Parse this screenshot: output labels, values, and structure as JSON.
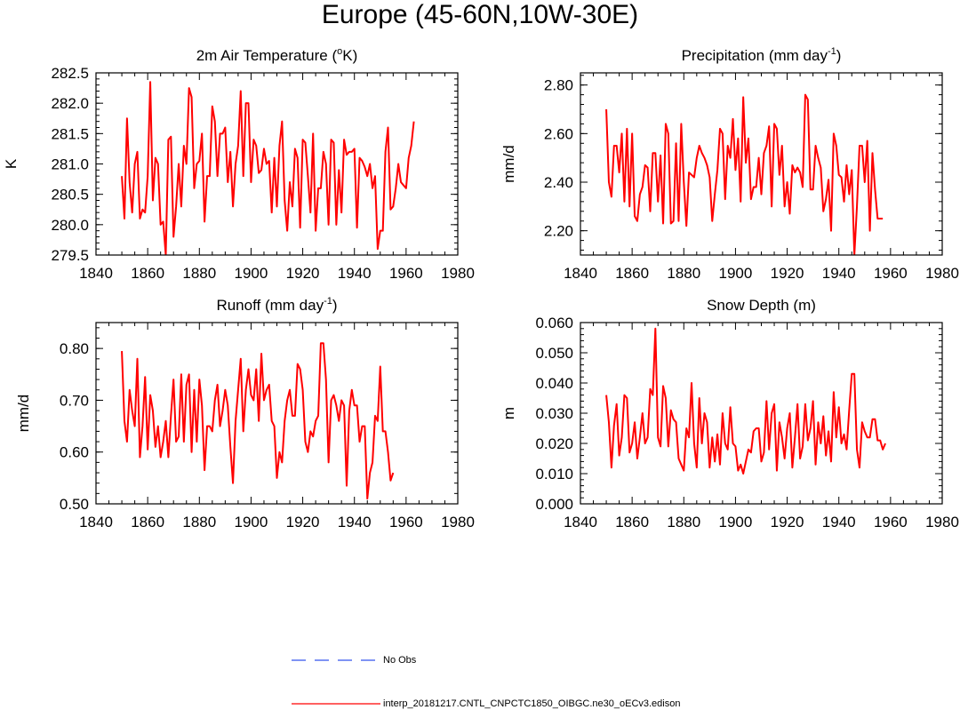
{
  "figure": {
    "title": "Europe (45-60N,10W-30E)",
    "line_color": "#ff0000",
    "obs_color": "#3355ee"
  },
  "legend": {
    "obs_label": "No Obs",
    "model_label": "interp_20181217.CNTL_CNPCTC1850_OIBGC.ne30_oECv3.edison"
  },
  "chart_data": [
    {
      "type": "line",
      "title_main": "2m Air Temperature (",
      "title_sup": "o",
      "title_end": "K)",
      "ylabel": "K",
      "xlim": [
        1840,
        1980
      ],
      "xticks": [
        1840,
        1860,
        1880,
        1900,
        1920,
        1940,
        1960,
        1980
      ],
      "ylim": [
        279.5,
        282.5
      ],
      "yticks": [
        "279.5",
        "280.0",
        "280.5",
        "281.0",
        "281.5",
        "282.0",
        "282.5"
      ],
      "x_start": 1850,
      "values": [
        280.8,
        280.1,
        281.75,
        280.7,
        280.2,
        281.0,
        281.2,
        280.1,
        280.25,
        280.2,
        280.8,
        282.35,
        280.4,
        281.1,
        281.0,
        280.0,
        280.05,
        279.5,
        281.4,
        281.45,
        279.8,
        280.3,
        281.0,
        280.3,
        281.3,
        281.0,
        282.25,
        282.1,
        280.6,
        281.0,
        281.05,
        281.5,
        280.05,
        280.8,
        280.8,
        281.95,
        281.7,
        280.8,
        281.5,
        281.5,
        281.6,
        280.7,
        281.2,
        280.3,
        281.0,
        281.3,
        282.2,
        280.8,
        282.0,
        282.0,
        280.7,
        281.4,
        281.3,
        280.85,
        280.9,
        281.25,
        281.0,
        281.05,
        280.2,
        281.1,
        280.3,
        281.3,
        281.7,
        280.4,
        279.9,
        280.7,
        280.3,
        281.25,
        281.1,
        279.95,
        281.4,
        281.35,
        280.8,
        280.2,
        281.5,
        279.9,
        280.6,
        280.6,
        281.2,
        281.0,
        280.0,
        281.4,
        281.35,
        280.0,
        280.9,
        280.2,
        281.4,
        281.15,
        281.2,
        281.2,
        281.25,
        279.95,
        281.1,
        281.05,
        280.95,
        280.8,
        281.0,
        280.6,
        280.8,
        279.6,
        279.9,
        279.9,
        281.2,
        281.6,
        280.25,
        280.3,
        280.6,
        281.0,
        280.7,
        280.65,
        280.6,
        281.1,
        281.3,
        281.7
      ]
    },
    {
      "type": "line",
      "title_main": "Precipitation (mm day",
      "title_sup": "-1",
      "title_end": ")",
      "ylabel": "mm/d",
      "xlim": [
        1840,
        1980
      ],
      "xticks": [
        1840,
        1860,
        1880,
        1900,
        1920,
        1940,
        1960,
        1980
      ],
      "ylim": [
        2.1,
        2.85
      ],
      "yticks": [
        "2.20",
        "2.40",
        "2.60",
        "2.80"
      ],
      "x_start": 1850,
      "values": [
        2.7,
        2.4,
        2.34,
        2.55,
        2.55,
        2.44,
        2.6,
        2.32,
        2.62,
        2.3,
        2.6,
        2.26,
        2.24,
        2.35,
        2.38,
        2.47,
        2.46,
        2.28,
        2.52,
        2.52,
        2.32,
        2.51,
        2.23,
        2.64,
        2.6,
        2.23,
        2.24,
        2.56,
        2.24,
        2.64,
        2.4,
        2.22,
        2.44,
        2.43,
        2.42,
        2.5,
        2.55,
        2.52,
        2.5,
        2.47,
        2.42,
        2.24,
        2.35,
        2.45,
        2.62,
        2.6,
        2.33,
        2.55,
        2.5,
        2.66,
        2.45,
        2.58,
        2.32,
        2.75,
        2.48,
        2.58,
        2.33,
        2.38,
        2.38,
        2.5,
        2.35,
        2.52,
        2.55,
        2.63,
        2.3,
        2.64,
        2.62,
        2.43,
        2.55,
        2.3,
        2.4,
        2.27,
        2.47,
        2.44,
        2.46,
        2.44,
        2.38,
        2.76,
        2.74,
        2.37,
        2.37,
        2.55,
        2.5,
        2.46,
        2.28,
        2.33,
        2.41,
        2.2,
        2.6,
        2.55,
        2.43,
        2.42,
        2.32,
        2.47,
        2.35,
        2.45,
        2.1,
        2.3,
        2.55,
        2.55,
        2.4,
        2.57,
        2.2,
        2.52,
        2.37,
        2.25,
        2.25,
        2.25
      ]
    },
    {
      "type": "line",
      "title_main": "Runoff (mm day",
      "title_sup": "-1",
      "title_end": ")",
      "ylabel": "mm/d",
      "xlim": [
        1840,
        1980
      ],
      "xticks": [
        1840,
        1860,
        1880,
        1900,
        1920,
        1940,
        1960,
        1980
      ],
      "ylim": [
        0.5,
        0.85
      ],
      "yticks": [
        "0.50",
        "0.60",
        "0.70",
        "0.80"
      ],
      "x_start": 1850,
      "values": [
        0.795,
        0.66,
        0.62,
        0.72,
        0.68,
        0.65,
        0.78,
        0.59,
        0.65,
        0.745,
        0.605,
        0.71,
        0.68,
        0.61,
        0.65,
        0.59,
        0.62,
        0.66,
        0.59,
        0.67,
        0.74,
        0.62,
        0.63,
        0.75,
        0.62,
        0.73,
        0.75,
        0.6,
        0.72,
        0.62,
        0.74,
        0.69,
        0.565,
        0.65,
        0.65,
        0.64,
        0.7,
        0.73,
        0.65,
        0.68,
        0.72,
        0.69,
        0.61,
        0.54,
        0.66,
        0.72,
        0.78,
        0.64,
        0.72,
        0.76,
        0.71,
        0.7,
        0.76,
        0.66,
        0.79,
        0.7,
        0.72,
        0.73,
        0.66,
        0.65,
        0.55,
        0.6,
        0.58,
        0.66,
        0.7,
        0.72,
        0.67,
        0.67,
        0.77,
        0.76,
        0.72,
        0.62,
        0.6,
        0.64,
        0.63,
        0.66,
        0.67,
        0.81,
        0.81,
        0.74,
        0.58,
        0.7,
        0.71,
        0.69,
        0.66,
        0.7,
        0.69,
        0.535,
        0.68,
        0.72,
        0.69,
        0.69,
        0.62,
        0.65,
        0.65,
        0.51,
        0.56,
        0.58,
        0.67,
        0.66,
        0.765,
        0.64,
        0.64,
        0.6,
        0.545,
        0.56
      ]
    },
    {
      "type": "line",
      "title_main": "Snow Depth (m)",
      "title_sup": "",
      "title_end": "",
      "ylabel": "m",
      "xlim": [
        1840,
        1980
      ],
      "xticks": [
        1840,
        1860,
        1880,
        1900,
        1920,
        1940,
        1960,
        1980
      ],
      "ylim": [
        0.0,
        0.06
      ],
      "yticks": [
        "0.000",
        "0.010",
        "0.020",
        "0.030",
        "0.040",
        "0.050",
        "0.060"
      ],
      "x_start": 1850,
      "values": [
        0.036,
        0.027,
        0.012,
        0.026,
        0.033,
        0.016,
        0.022,
        0.036,
        0.035,
        0.017,
        0.02,
        0.027,
        0.015,
        0.022,
        0.03,
        0.02,
        0.022,
        0.038,
        0.036,
        0.058,
        0.022,
        0.019,
        0.039,
        0.035,
        0.019,
        0.031,
        0.028,
        0.027,
        0.015,
        0.013,
        0.011,
        0.025,
        0.022,
        0.04,
        0.02,
        0.012,
        0.035,
        0.02,
        0.03,
        0.027,
        0.012,
        0.022,
        0.014,
        0.023,
        0.013,
        0.03,
        0.02,
        0.018,
        0.032,
        0.02,
        0.019,
        0.011,
        0.013,
        0.01,
        0.014,
        0.018,
        0.017,
        0.024,
        0.025,
        0.025,
        0.014,
        0.017,
        0.034,
        0.018,
        0.03,
        0.033,
        0.011,
        0.027,
        0.022,
        0.015,
        0.025,
        0.03,
        0.012,
        0.022,
        0.033,
        0.015,
        0.019,
        0.033,
        0.021,
        0.025,
        0.034,
        0.013,
        0.027,
        0.02,
        0.029,
        0.016,
        0.024,
        0.014,
        0.037,
        0.022,
        0.032,
        0.02,
        0.023,
        0.018,
        0.031,
        0.043,
        0.043,
        0.018,
        0.012,
        0.027,
        0.024,
        0.022,
        0.022,
        0.028,
        0.028,
        0.021,
        0.021,
        0.018,
        0.02
      ]
    }
  ]
}
